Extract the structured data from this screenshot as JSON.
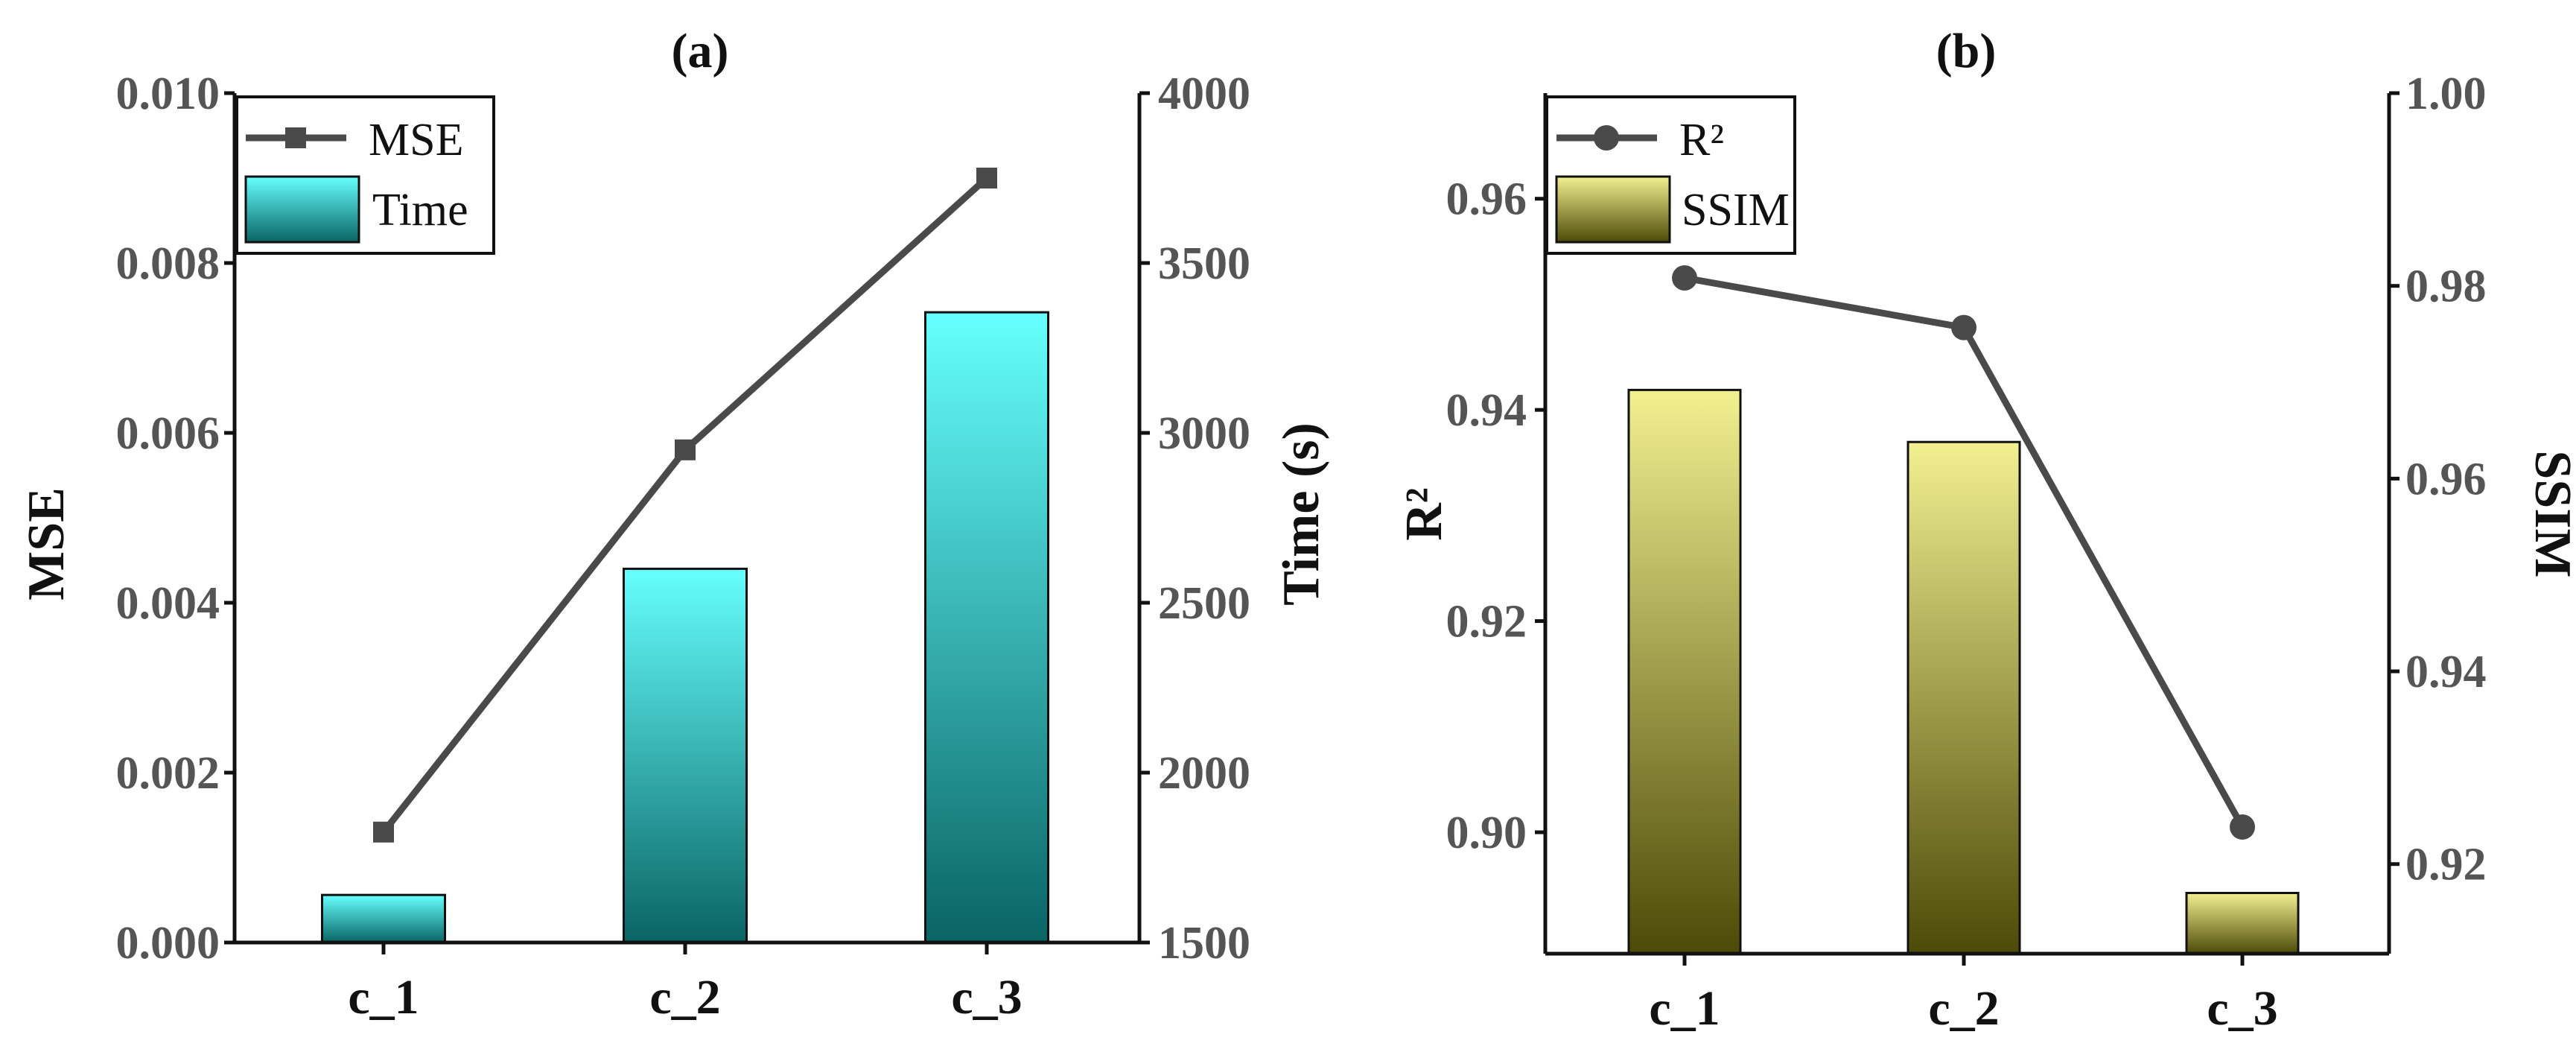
{
  "chart_data": [
    {
      "type": "bar+line",
      "title": "(a)",
      "categories": [
        "c_1",
        "c_2",
        "c_3"
      ],
      "line_series": {
        "name": "MSE",
        "axis": "left",
        "marker": "square",
        "color": "#4a4a4a",
        "values": [
          0.0013,
          0.0058,
          0.009
        ]
      },
      "bar_series": {
        "name": "Time",
        "axis": "right",
        "gradient": [
          "#66ffff",
          "#0a6464"
        ],
        "values": [
          1640,
          2600,
          3355
        ]
      },
      "left_axis": {
        "label": "MSE",
        "ylim": [
          0,
          0.01
        ],
        "ticks": [
          "0.000",
          "0.002",
          "0.004",
          "0.006",
          "0.008",
          "0.010"
        ]
      },
      "right_axis": {
        "label": "Time (s)",
        "ylim": [
          1500,
          4000
        ],
        "ticks": [
          "1500",
          "2000",
          "2500",
          "3000",
          "3500",
          "4000"
        ]
      },
      "legend": "top-left"
    },
    {
      "type": "bar+line",
      "title": "(b)",
      "categories": [
        "c_1",
        "c_2",
        "c_3"
      ],
      "line_series": {
        "name": "R²",
        "axis": "left",
        "marker": "circle",
        "color": "#4a4a4a",
        "values": [
          0.9525,
          0.9478,
          0.9005
        ]
      },
      "bar_series": {
        "name": "SSIM",
        "axis": "right",
        "gradient": [
          "#f2f090",
          "#4d4a08"
        ],
        "values": [
          0.9692,
          0.9638,
          0.917
        ]
      },
      "left_axis": {
        "label": "R²",
        "ylim": [
          0.8885,
          0.97
        ],
        "ticks": [
          "0.90",
          "0.92",
          "0.94",
          "0.96"
        ]
      },
      "right_axis": {
        "label": "SSIM",
        "ylim": [
          0.9107,
          1.0
        ],
        "ticks": [
          "0.92",
          "0.94",
          "0.96",
          "0.98",
          "1.00"
        ]
      },
      "legend": "top-left"
    }
  ]
}
